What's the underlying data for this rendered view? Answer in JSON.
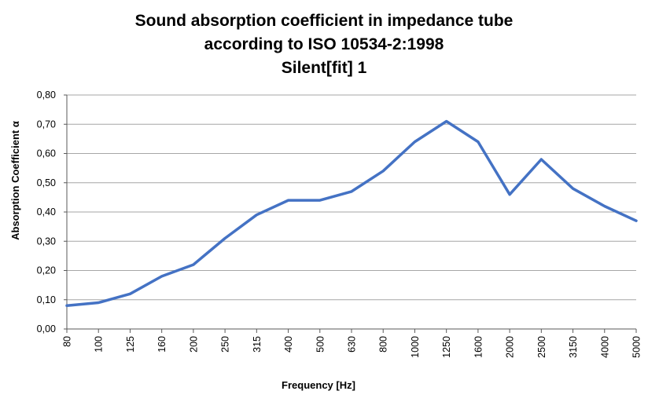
{
  "chart_data": {
    "type": "line",
    "title": [
      "Sound absorption coefficient in impedance tube",
      "according to ISO 10534-2:1998",
      "Silent[fit] 1"
    ],
    "xlabel": "Frequency [Hz]",
    "ylabel": "Absorption Coefficient α",
    "categories": [
      "80",
      "100",
      "125",
      "160",
      "200",
      "250",
      "315",
      "400",
      "500",
      "630",
      "800",
      "1000",
      "1250",
      "1600",
      "2000",
      "2500",
      "3150",
      "4000",
      "5000"
    ],
    "y_ticks": [
      "0,00",
      "0,10",
      "0,20",
      "0,30",
      "0,40",
      "0,50",
      "0,60",
      "0,70",
      "0,80"
    ],
    "ylim": [
      0,
      0.8
    ],
    "grid": true,
    "series": [
      {
        "values": [
          0.08,
          0.09,
          0.12,
          0.18,
          0.22,
          0.31,
          0.39,
          0.44,
          0.44,
          0.47,
          0.54,
          0.64,
          0.71,
          0.64,
          0.46,
          0.58,
          0.48,
          0.42,
          0.37
        ],
        "color": "#4472c4"
      }
    ]
  }
}
